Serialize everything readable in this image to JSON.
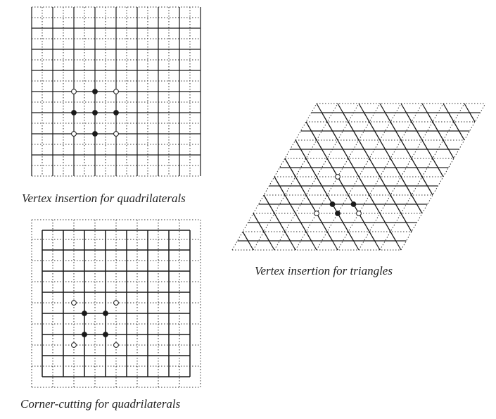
{
  "figures": [
    {
      "id": "quad-vertex",
      "caption": "Vertex insertion for quadrilaterals"
    },
    {
      "id": "tri-vertex",
      "caption": "Vertex insertion for triangles"
    },
    {
      "id": "quad-corner",
      "caption": "Corner-cutting for quadrilaterals"
    }
  ],
  "colors": {
    "line": "#1a1a1a",
    "dotted": "#333333",
    "background": "#ffffff"
  }
}
